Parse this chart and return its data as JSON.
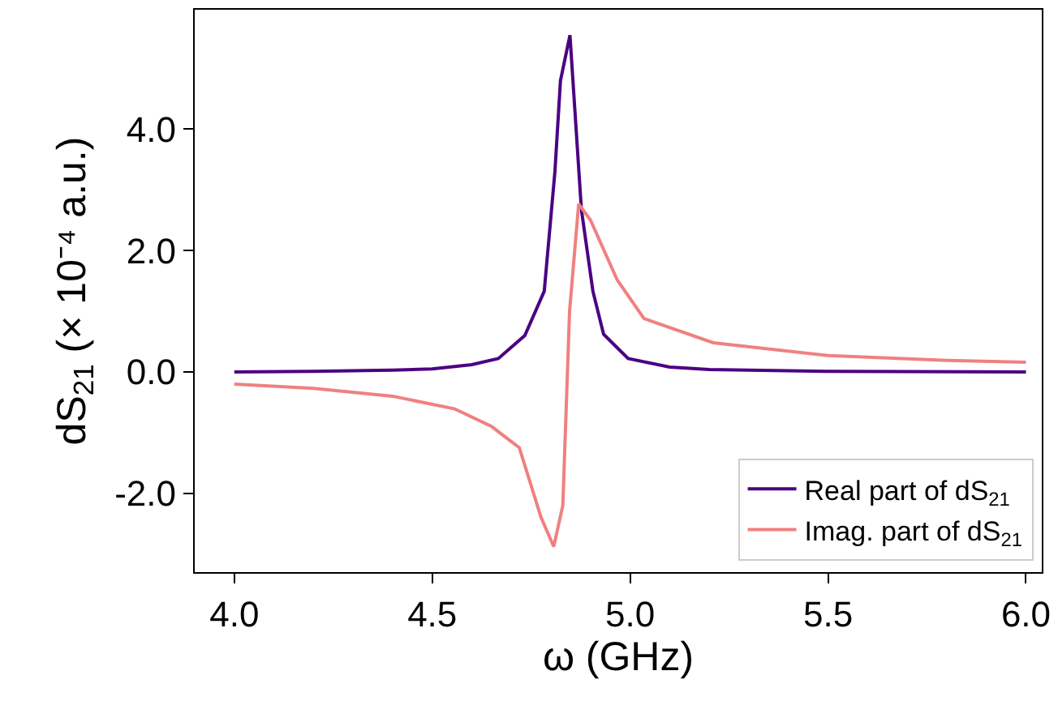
{
  "chart_data": {
    "type": "line",
    "xlabel": "ω (GHz)",
    "ylabel": "dS$_{21}$ (× 10⁻⁴ a.u.)",
    "series": [
      {
        "name": "Real part of dS$_{21}$",
        "color": "#4b0082",
        "x": [
          4.0,
          4.2,
          4.4,
          4.5,
          4.6,
          4.667,
          4.734,
          4.783,
          4.81,
          4.824,
          4.848,
          4.877,
          4.906,
          4.933,
          4.995,
          5.1,
          5.2,
          5.5,
          6.0
        ],
        "values": [
          0.0,
          0.01,
          0.03,
          0.05,
          0.12,
          0.22,
          0.6,
          1.33,
          3.3,
          4.8,
          5.55,
          2.67,
          1.33,
          0.62,
          0.22,
          0.08,
          0.04,
          0.01,
          0.0
        ]
      },
      {
        "name": "Imag. part of dS$_{21}$",
        "color": "#f08080",
        "x": [
          4.0,
          4.2,
          4.4,
          4.557,
          4.65,
          4.72,
          4.775,
          4.807,
          4.83,
          4.847,
          4.87,
          4.9,
          4.967,
          5.035,
          5.21,
          5.5,
          5.8,
          6.0
        ],
        "values": [
          -0.2,
          -0.27,
          -0.4,
          -0.61,
          -0.9,
          -1.25,
          -2.4,
          -2.88,
          -2.2,
          1.0,
          2.77,
          2.5,
          1.52,
          0.88,
          0.48,
          0.27,
          0.19,
          0.16
        ]
      }
    ],
    "xlim": [
      3.9,
      6.04
    ],
    "ylim": [
      -3.3,
      5.97
    ],
    "xticks": [
      {
        "value": 4,
        "label": "4.0"
      },
      {
        "value": 4.5,
        "label": "4.5"
      },
      {
        "value": 5,
        "label": "5.0"
      },
      {
        "value": 5.5,
        "label": "5.5"
      },
      {
        "value": 6,
        "label": "6.0"
      }
    ],
    "yticks": [
      {
        "value": -2,
        "label": "-2.0"
      },
      {
        "value": 0,
        "label": "0.0"
      },
      {
        "value": 2,
        "label": "2.0"
      },
      {
        "value": 4,
        "label": "4.0"
      }
    ],
    "grid": false,
    "legend": "bottom right",
    "marker": "none",
    "line_style": "solid"
  }
}
